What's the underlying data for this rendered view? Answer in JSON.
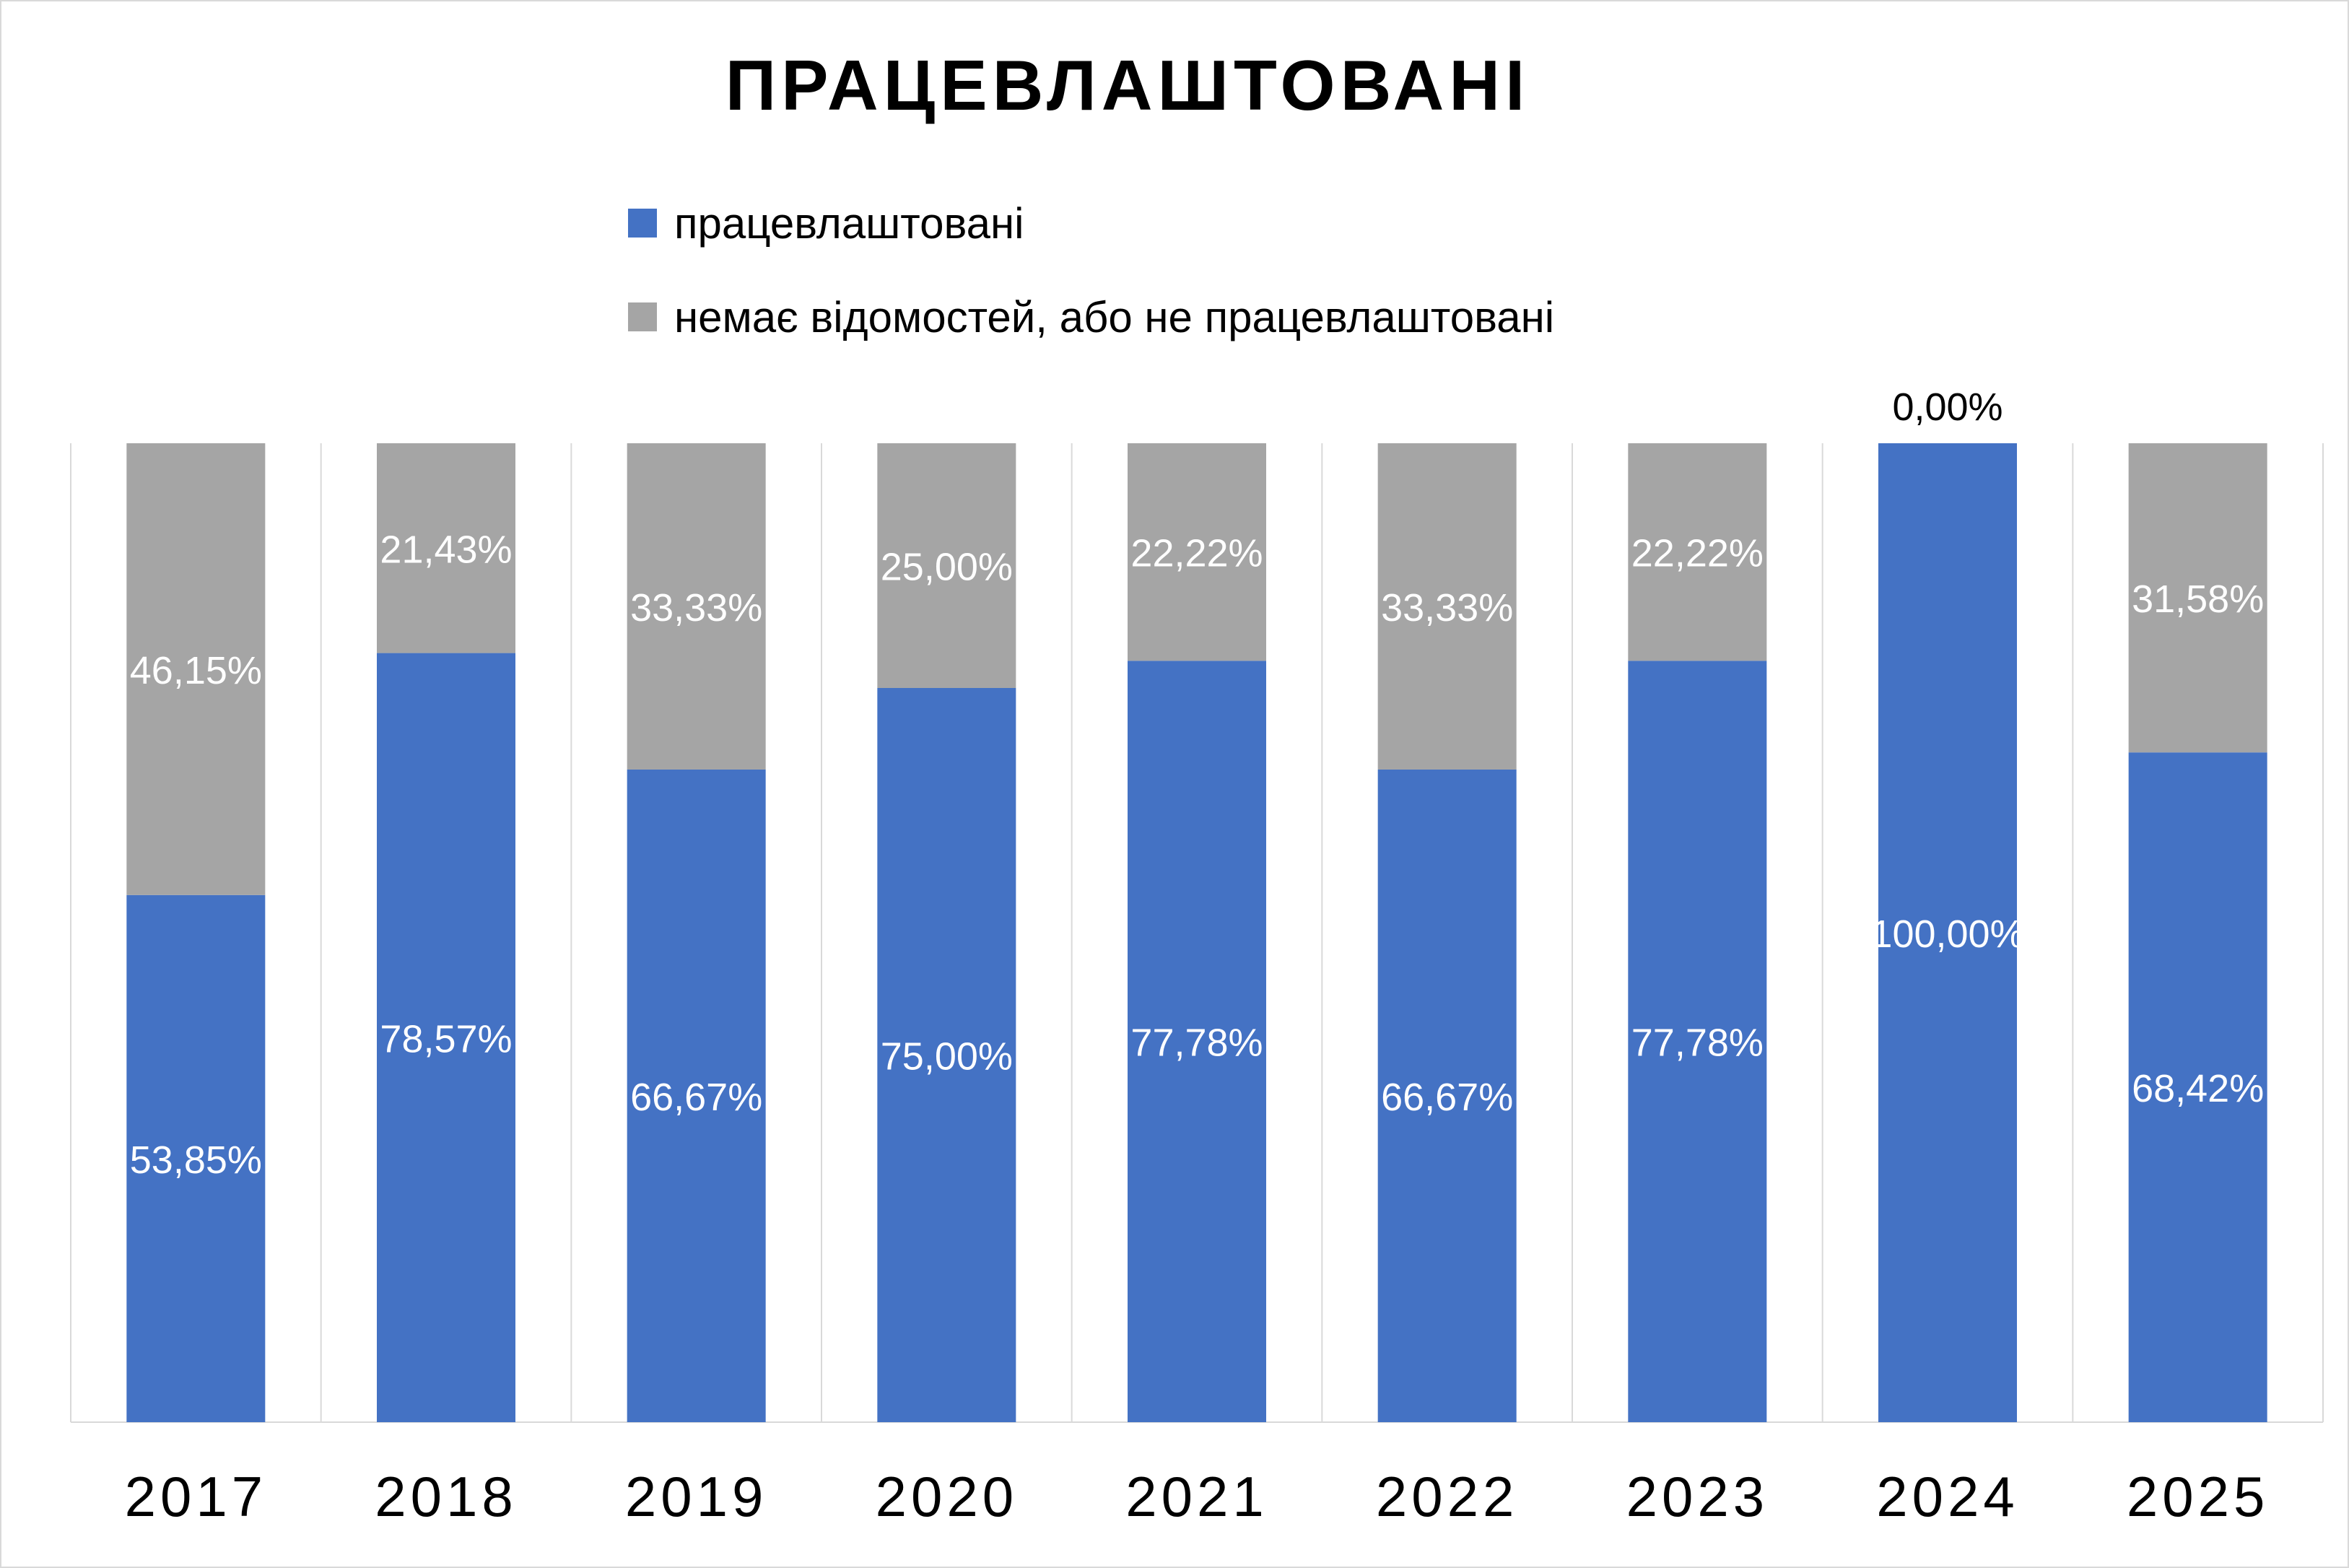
{
  "chart_data": {
    "type": "bar",
    "stacked": true,
    "percent_stacked": true,
    "title": "ПРАЦЕВЛАШТОВАНІ",
    "categories": [
      "2017",
      "2018",
      "2019",
      "2020",
      "2021",
      "2022",
      "2023",
      "2024",
      "2025"
    ],
    "series": [
      {
        "name": "працевлаштовані",
        "color": "#4472C4",
        "values": [
          53.85,
          78.57,
          66.67,
          75.0,
          77.78,
          66.67,
          77.78,
          100.0,
          68.42
        ],
        "labels": [
          "53,85%",
          "78,57%",
          "66,67%",
          "75,00%",
          "77,78%",
          "66,67%",
          "77,78%",
          "100,00%",
          "68,42%"
        ]
      },
      {
        "name": "немає відомостей, або не працевлаштовані",
        "color": "#A5A5A5",
        "values": [
          46.15,
          21.43,
          33.33,
          25.0,
          22.22,
          33.33,
          22.22,
          0.0,
          31.58
        ],
        "labels": [
          "46,15%",
          "21,43%",
          "33,33%",
          "25,00%",
          "22,22%",
          "33,33%",
          "22,22%",
          "0,00%",
          "31,58%"
        ]
      }
    ],
    "ylim": [
      0,
      100
    ],
    "grid": "vertical category separators",
    "legend_position": "top"
  }
}
